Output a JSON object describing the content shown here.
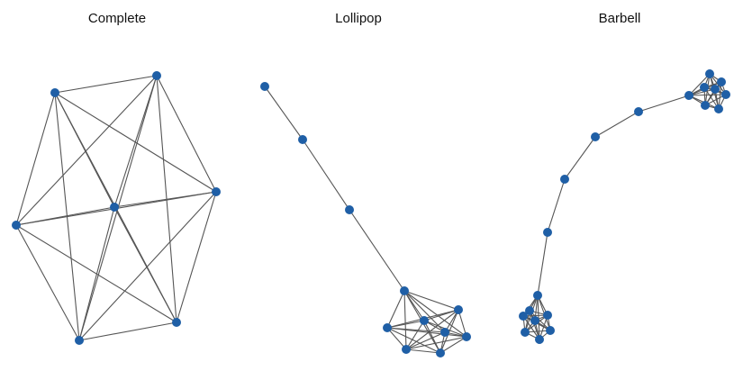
{
  "titles": {
    "complete": "Complete",
    "lollipop": "Lollipop",
    "barbell": "Barbell"
  },
  "colors": {
    "node": "#1f5fa6",
    "edge": "#555555",
    "background": "#ffffff"
  }
}
